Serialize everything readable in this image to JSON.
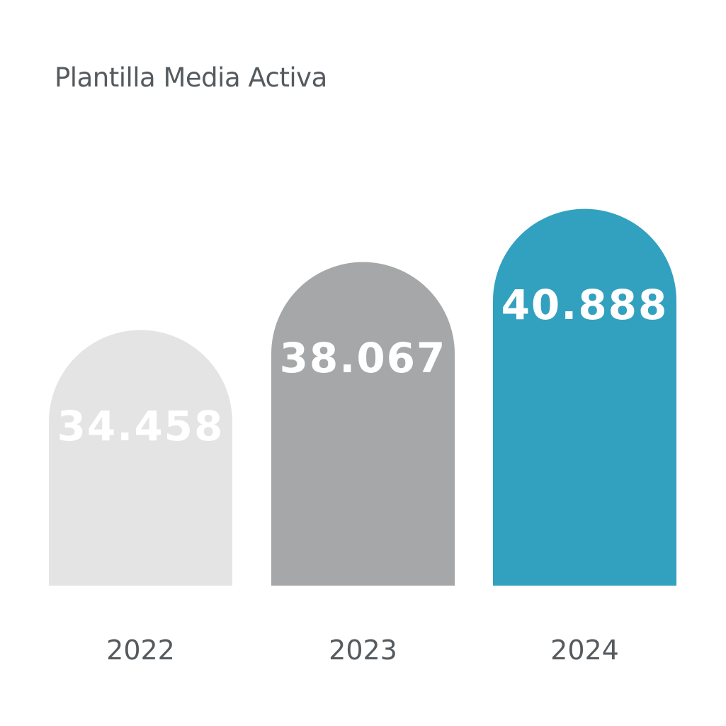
{
  "chart_data": {
    "type": "bar",
    "title": "Plantilla Media Activa",
    "categories": [
      "2022",
      "2023",
      "2024"
    ],
    "values": [
      34458,
      38067,
      40888
    ],
    "value_labels": [
      "34.458",
      "38.067",
      "40.888"
    ],
    "colors": [
      "#e4e4e4",
      "#a6a7a8",
      "#32a1bf"
    ],
    "grid": false,
    "legend": "none"
  }
}
